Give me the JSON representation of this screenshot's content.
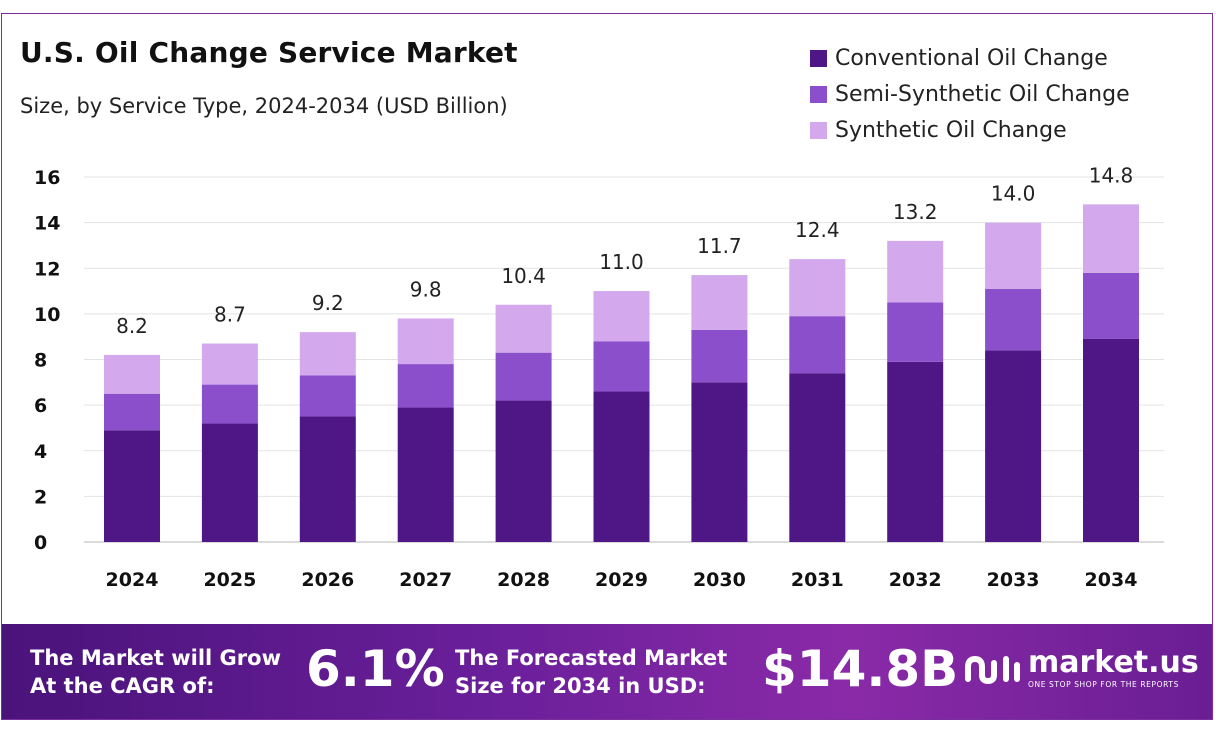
{
  "header": {
    "title": "U.S. Oil Change Service Market",
    "subtitle": "Size, by Service Type, 2024-2034 (USD Billion)"
  },
  "colors": {
    "conventional": "#4f1786",
    "semi_synthetic": "#8c4fcc",
    "synthetic": "#d3a8ec",
    "grid": "#e3e3e3"
  },
  "chart_data": {
    "type": "bar",
    "stacked": true,
    "categories": [
      "2024",
      "2025",
      "2026",
      "2027",
      "2028",
      "2029",
      "2030",
      "2031",
      "2032",
      "2033",
      "2034"
    ],
    "series": [
      {
        "name": "Conventional Oil Change",
        "values": [
          4.9,
          5.2,
          5.5,
          5.9,
          6.2,
          6.6,
          7.0,
          7.4,
          7.9,
          8.4,
          8.9
        ]
      },
      {
        "name": "Semi-Synthetic Oil Change",
        "values": [
          1.6,
          1.7,
          1.8,
          1.9,
          2.1,
          2.2,
          2.3,
          2.5,
          2.6,
          2.7,
          2.9
        ]
      },
      {
        "name": "Synthetic Oil Change",
        "values": [
          1.7,
          1.8,
          1.9,
          2.0,
          2.1,
          2.2,
          2.4,
          2.5,
          2.7,
          2.9,
          3.0
        ]
      }
    ],
    "totals": [
      "8.2",
      "8.7",
      "9.2",
      "9.8",
      "10.4",
      "11.0",
      "11.7",
      "12.4",
      "13.2",
      "14.0",
      "14.8"
    ],
    "yticks": [
      0,
      2,
      4,
      6,
      8,
      10,
      12,
      14,
      16
    ],
    "ylim": [
      0,
      16
    ],
    "grid": "horizontal",
    "legend_position": "top-right"
  },
  "banner": {
    "cagr_label_line1": "The Market will Grow",
    "cagr_label_line2": "At the CAGR of:",
    "cagr_value": "6.1%",
    "forecast_label_line1": "The Forecasted Market",
    "forecast_label_line2": "Size for 2034 in USD:",
    "forecast_value": "$14.8B",
    "brand_name": "market.us",
    "brand_tagline": "ONE STOP SHOP FOR THE REPORTS",
    "brand_icon": "market-us-logo-icon"
  }
}
